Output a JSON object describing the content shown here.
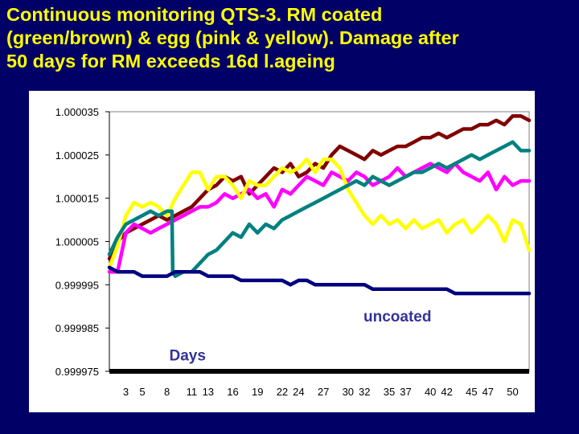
{
  "slide": {
    "title_line1": "Continuous monitoring QTS-3. RM coated",
    "title_line2": "(green/brown) & egg (pink & yellow). Damage after",
    "title_line3": "50 days for RM exceeds 16d l.ageing",
    "title_color": "#ffff00",
    "background_color": "#000066"
  },
  "chart_data": {
    "type": "line",
    "title": "",
    "xlabel": "Days",
    "ylabel": "",
    "xlim": [
      1,
      52
    ],
    "ylim": [
      0.999975,
      1.000035
    ],
    "y_ticks": [
      "1.000035",
      "1.000025",
      "1.000015",
      "1.000005",
      "0.999995",
      "0.999985",
      "0.999975"
    ],
    "x_ticks": [
      "3",
      "5",
      "8",
      "11",
      "13",
      "16",
      "19",
      "22",
      "24",
      "27",
      "30",
      "32",
      "35",
      "37",
      "40",
      "42",
      "45",
      "47",
      "50"
    ],
    "x_tick_values": [
      3,
      5,
      8,
      11,
      13,
      16,
      19,
      22,
      24,
      27,
      30,
      32,
      35,
      37,
      40,
      42,
      45,
      47,
      50
    ],
    "grid": false,
    "legend": "none",
    "annotations": [
      {
        "text": "uncoated",
        "x": 36,
        "y": 0.999988,
        "color": "#333399"
      },
      {
        "text": "Days",
        "x": 10.5,
        "y": 0.999979,
        "color": "#333399"
      }
    ],
    "baseline": {
      "y": 0.999975,
      "color": "#000000"
    },
    "series": [
      {
        "color": "#800000",
        "x": [
          1,
          2,
          3,
          4,
          5,
          6,
          7,
          8,
          9,
          10,
          11,
          12,
          13,
          14,
          15,
          16,
          17,
          18,
          19,
          20,
          21,
          22,
          23,
          24,
          25,
          26,
          27,
          28,
          29,
          30,
          31,
          32,
          33,
          34,
          35,
          36,
          37,
          38,
          39,
          40,
          41,
          42,
          43,
          44,
          45,
          46,
          47,
          48,
          49,
          50,
          51,
          52
        ],
        "values": [
          1.000001,
          1.000005,
          1.000007,
          1.000008,
          1.000009,
          1.00001,
          1.000011,
          1.00001,
          1.000011,
          1.000012,
          1.000013,
          1.000015,
          1.000017,
          1.000018,
          1.00002,
          1.000019,
          1.00002,
          1.000016,
          1.000018,
          1.00002,
          1.000022,
          1.000021,
          1.000023,
          1.00002,
          1.000021,
          1.000023,
          1.000022,
          1.000025,
          1.000027,
          1.000026,
          1.000025,
          1.000024,
          1.000026,
          1.000025,
          1.000026,
          1.000027,
          1.000027,
          1.000028,
          1.000029,
          1.000029,
          1.00003,
          1.000029,
          1.00003,
          1.000031,
          1.000031,
          1.000032,
          1.000032,
          1.000033,
          1.000032,
          1.000034,
          1.000034,
          1.000033
        ]
      },
      {
        "color": "#ff00ff",
        "x": [
          1,
          2,
          3,
          4,
          5,
          6,
          7,
          8,
          9,
          10,
          11,
          12,
          13,
          14,
          15,
          16,
          17,
          18,
          19,
          20,
          21,
          22,
          23,
          24,
          25,
          26,
          27,
          28,
          29,
          30,
          31,
          32,
          33,
          34,
          35,
          36,
          37,
          38,
          39,
          40,
          41,
          42,
          43,
          44,
          45,
          46,
          47,
          48,
          49,
          50,
          51,
          52
        ],
        "values": [
          0.999998,
          0.999998,
          1.000007,
          1.000009,
          1.000008,
          1.000007,
          1.000008,
          1.000009,
          1.00001,
          1.000011,
          1.000012,
          1.000013,
          1.000013,
          1.000014,
          1.000016,
          1.000015,
          1.000016,
          1.000017,
          1.000015,
          1.000016,
          1.000013,
          1.000017,
          1.000016,
          1.000018,
          1.00002,
          1.000019,
          1.000018,
          1.000021,
          1.00002,
          1.000019,
          1.000021,
          1.00002,
          1.000018,
          1.000019,
          1.00002,
          1.000022,
          1.00002,
          1.000021,
          1.000022,
          1.000023,
          1.000022,
          1.000021,
          1.000023,
          1.000021,
          1.00002,
          1.000019,
          1.000021,
          1.000017,
          1.00002,
          1.000018,
          1.000019,
          1.000019
        ]
      },
      {
        "color": "#ffff00",
        "x": [
          1,
          2,
          3,
          4,
          5,
          6,
          7,
          8,
          9,
          10,
          11,
          12,
          13,
          14,
          15,
          16,
          17,
          18,
          19,
          20,
          21,
          22,
          23,
          24,
          25,
          26,
          27,
          28,
          29,
          30,
          31,
          32,
          33,
          34,
          35,
          36,
          37,
          38,
          39,
          40,
          41,
          42,
          43,
          44,
          45,
          46,
          47,
          48,
          49,
          50,
          51,
          52
        ],
        "values": [
          0.999999,
          1.000004,
          1.000011,
          1.000014,
          1.000013,
          1.000014,
          1.000013,
          1.000011,
          1.000015,
          1.000018,
          1.000021,
          1.000021,
          1.000017,
          1.00002,
          1.00002,
          1.000018,
          1.000015,
          1.000019,
          1.000018,
          1.000018,
          1.00002,
          1.000022,
          1.000021,
          1.000022,
          1.000024,
          1.000021,
          1.000024,
          1.000024,
          1.000022,
          1.000017,
          1.000014,
          1.000011,
          1.000009,
          1.000011,
          1.000009,
          1.00001,
          1.000008,
          1.00001,
          1.000008,
          1.000009,
          1.00001,
          1.000007,
          1.000009,
          1.00001,
          1.000007,
          1.000009,
          1.000011,
          1.000009,
          1.000005,
          1.00001,
          1.000009,
          1.000003
        ]
      },
      {
        "color": "#008080",
        "x": [
          1,
          2,
          3,
          4,
          5,
          6,
          7,
          8,
          8.6,
          8.7,
          9,
          10,
          11,
          12,
          13,
          14,
          15,
          16,
          17,
          18,
          19,
          20,
          21,
          22,
          23,
          24,
          25,
          26,
          27,
          28,
          29,
          30,
          31,
          32,
          33,
          34,
          35,
          36,
          37,
          38,
          39,
          40,
          41,
          42,
          43,
          44,
          45,
          46,
          47,
          48,
          49,
          50,
          51,
          52
        ],
        "values": [
          1.000002,
          1.000006,
          1.000009,
          1.00001,
          1.000011,
          1.000012,
          1.000011,
          1.000012,
          1.000012,
          0.999998,
          0.999997,
          0.999998,
          0.999998,
          1.0,
          1.000002,
          1.000003,
          1.000005,
          1.000007,
          1.000006,
          1.000009,
          1.000007,
          1.000009,
          1.000008,
          1.00001,
          1.000011,
          1.000012,
          1.000013,
          1.000014,
          1.000015,
          1.000016,
          1.000017,
          1.000018,
          1.000019,
          1.000018,
          1.00002,
          1.000019,
          1.000018,
          1.000019,
          1.00002,
          1.000021,
          1.000021,
          1.000022,
          1.000023,
          1.000022,
          1.000023,
          1.000024,
          1.000025,
          1.000024,
          1.000025,
          1.000026,
          1.000027,
          1.000028,
          1.000026,
          1.000026
        ]
      },
      {
        "name": "uncoated",
        "color": "#000080",
        "x": [
          1,
          2,
          3,
          4,
          5,
          6,
          7,
          8,
          9,
          10,
          11,
          12,
          13,
          14,
          15,
          16,
          17,
          18,
          19,
          20,
          21,
          22,
          23,
          24,
          25,
          26,
          27,
          28,
          29,
          30,
          31,
          32,
          33,
          34,
          35,
          36,
          37,
          38,
          39,
          40,
          41,
          42,
          43,
          44,
          45,
          46,
          47,
          48,
          49,
          50,
          51,
          52
        ],
        "values": [
          0.999999,
          0.999998,
          0.999998,
          0.999998,
          0.999997,
          0.999997,
          0.999997,
          0.999997,
          0.999998,
          0.999998,
          0.999998,
          0.999998,
          0.999997,
          0.999997,
          0.999997,
          0.999997,
          0.999996,
          0.999996,
          0.999996,
          0.999996,
          0.999996,
          0.999996,
          0.999995,
          0.999996,
          0.999996,
          0.999995,
          0.999995,
          0.999995,
          0.999995,
          0.999995,
          0.999995,
          0.999995,
          0.999994,
          0.999994,
          0.999994,
          0.999994,
          0.999994,
          0.999994,
          0.999994,
          0.999994,
          0.999994,
          0.999994,
          0.999993,
          0.999993,
          0.999993,
          0.999993,
          0.999993,
          0.999993,
          0.999993,
          0.999993,
          0.999993,
          0.999993
        ]
      }
    ]
  }
}
